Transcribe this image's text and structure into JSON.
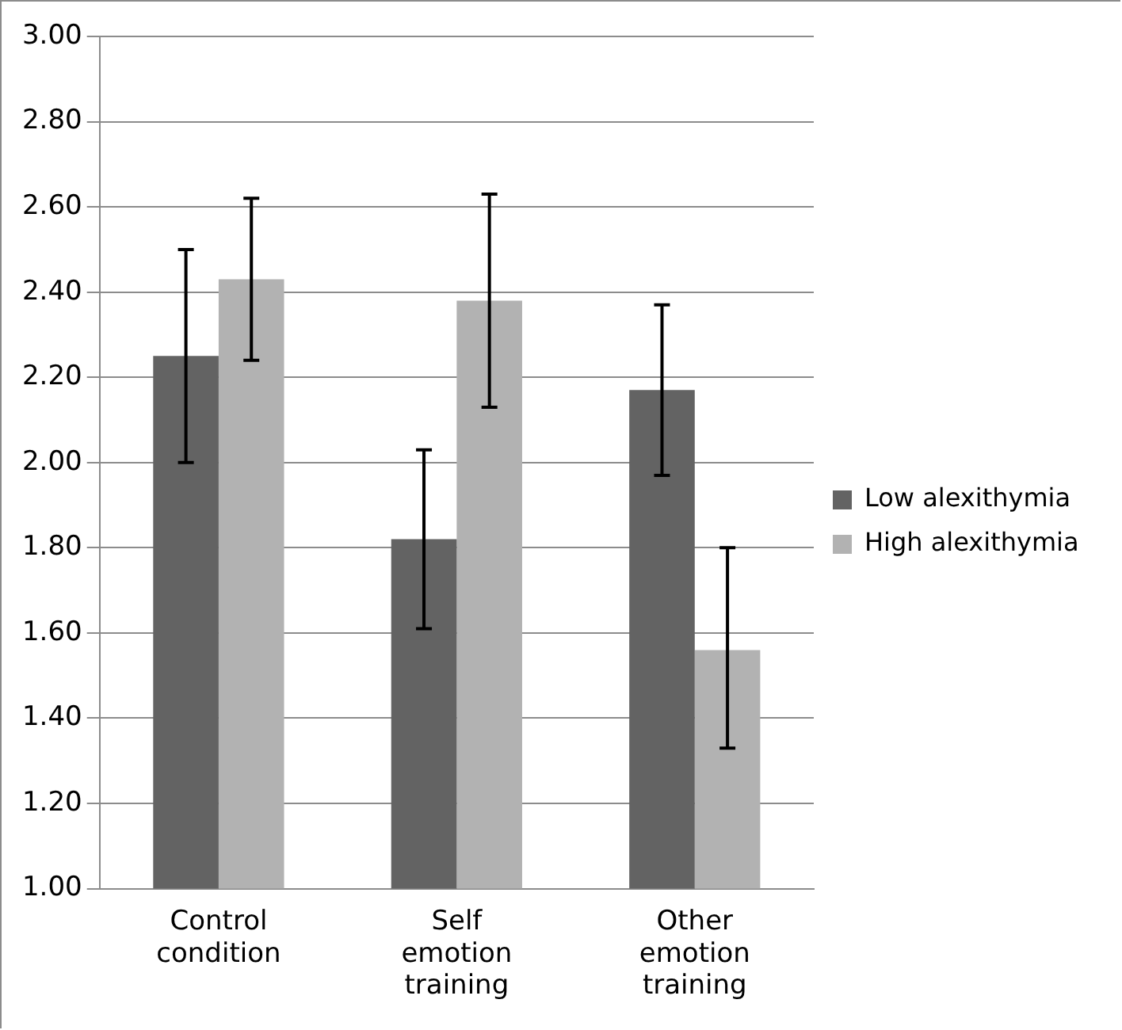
{
  "chart_data": {
    "type": "bar",
    "categories": [
      "Control condition",
      "Self emotion training",
      "Other emotion training"
    ],
    "series": [
      {
        "name": "Low alexithymia",
        "color": "#636363",
        "values": [
          2.25,
          1.82,
          2.17
        ],
        "errors": [
          [
            2.0,
            2.5
          ],
          [
            1.61,
            2.03
          ],
          [
            1.97,
            2.37
          ]
        ]
      },
      {
        "name": "High alexithymia",
        "color": "#b2b2b2",
        "values": [
          2.43,
          2.38,
          1.56
        ],
        "errors": [
          [
            2.24,
            2.62
          ],
          [
            2.13,
            2.63
          ],
          [
            1.33,
            1.8
          ]
        ]
      }
    ],
    "ylim": [
      1,
      3
    ],
    "yticks": [
      {
        "value": 1,
        "label": "1.00"
      },
      {
        "value": 1.2,
        "label": "1.20"
      },
      {
        "value": 1.4,
        "label": "1.40"
      },
      {
        "value": 1.6,
        "label": "1.60"
      },
      {
        "value": 1.8,
        "label": "1.80"
      },
      {
        "value": 2,
        "label": "2.00"
      },
      {
        "value": 2.2,
        "label": "2.20"
      },
      {
        "value": 2.4,
        "label": "2.40"
      },
      {
        "value": 2.6,
        "label": "2.60"
      },
      {
        "value": 2.8,
        "label": "2.80"
      },
      {
        "value": 3,
        "label": "3.00"
      }
    ],
    "grid": "y",
    "legend": "right"
  }
}
